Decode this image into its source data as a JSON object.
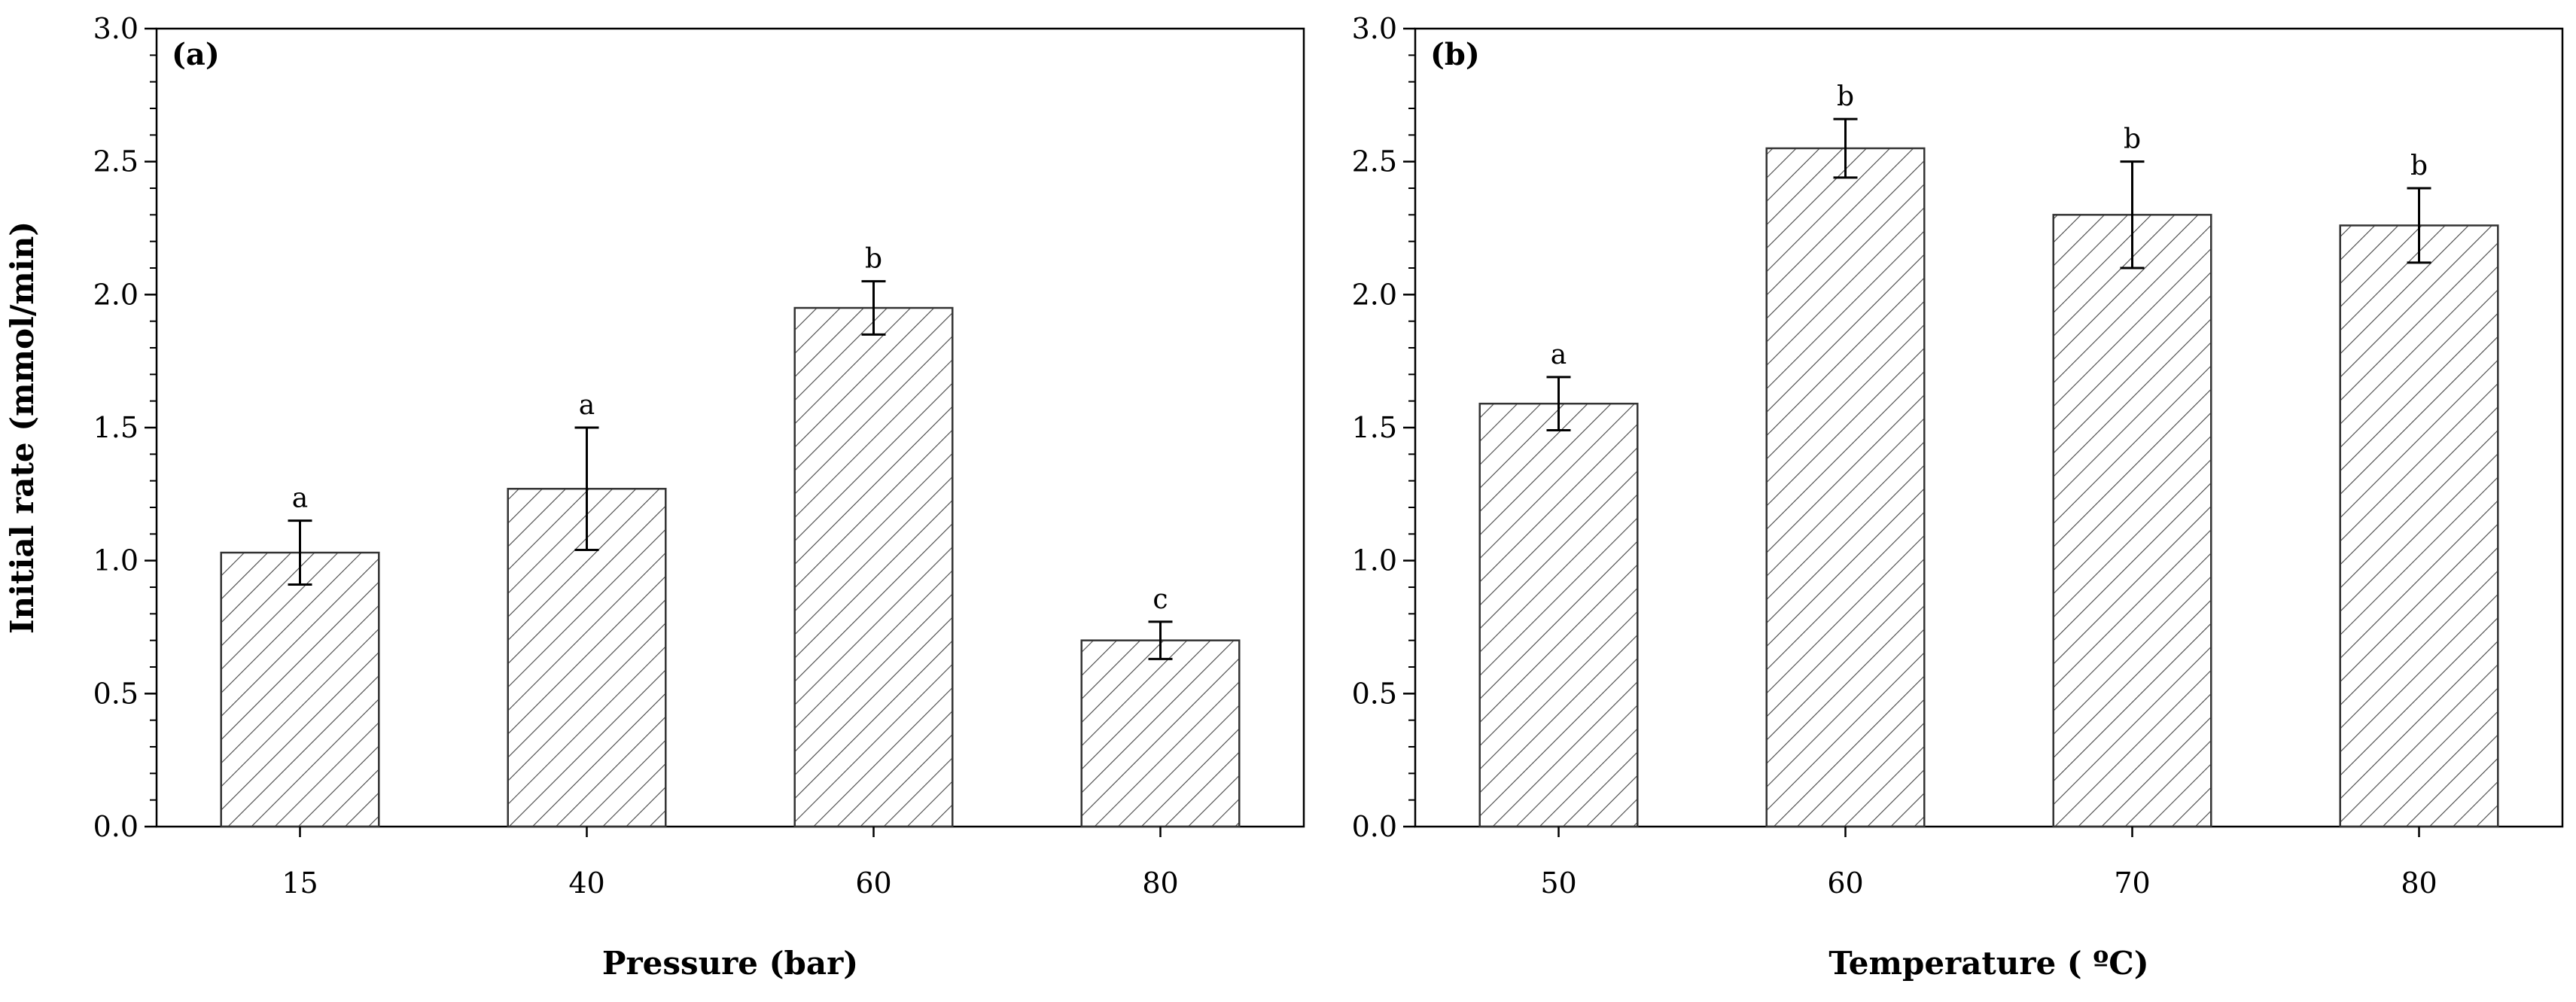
{
  "y_axis": {
    "title": "Initial rate (mmol/min)",
    "tick_labels": [
      "0.0",
      "0.5",
      "1.0",
      "1.5",
      "2.0",
      "2.5",
      "3.0"
    ]
  },
  "chart_data": [
    {
      "type": "bar",
      "panel_label": "(a)",
      "xlabel": "Pressure (bar)",
      "ylabel": "Initial rate (mmol/min)",
      "categories": [
        "15",
        "40",
        "60",
        "80"
      ],
      "values": [
        1.03,
        1.27,
        1.95,
        0.7
      ],
      "errors": [
        0.12,
        0.23,
        0.1,
        0.07
      ],
      "significance": [
        "a",
        "a",
        "b",
        "c"
      ],
      "ylim": [
        0,
        3.0
      ],
      "yticks": [
        0.0,
        0.5,
        1.0,
        1.5,
        2.0,
        2.5,
        3.0
      ],
      "bar_fill": "diagonal hatch",
      "grid": false,
      "legend": "none"
    },
    {
      "type": "bar",
      "panel_label": "(b)",
      "xlabel": "Temperature ( ºC)",
      "ylabel": "",
      "categories": [
        "50",
        "60",
        "70",
        "80"
      ],
      "values": [
        1.59,
        2.55,
        2.3,
        2.26
      ],
      "errors": [
        0.1,
        0.11,
        0.2,
        0.14
      ],
      "significance": [
        "a",
        "b",
        "b",
        "b"
      ],
      "ylim": [
        0,
        3.0
      ],
      "yticks": [
        0.0,
        0.5,
        1.0,
        1.5,
        2.0,
        2.5,
        3.0
      ],
      "bar_fill": "diagonal hatch",
      "grid": false,
      "legend": "none"
    }
  ],
  "colors": {
    "axis": "#000000",
    "bar_edge": "#333333",
    "hatch": "#444444",
    "background": "#ffffff"
  }
}
